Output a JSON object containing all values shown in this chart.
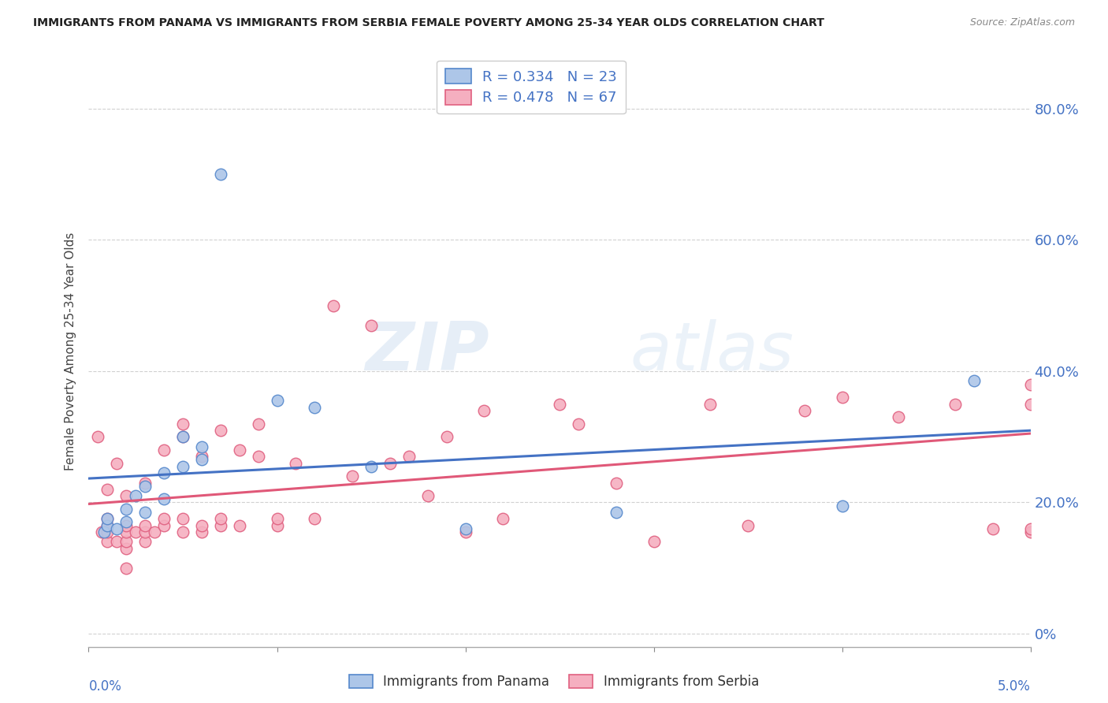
{
  "title": "IMMIGRANTS FROM PANAMA VS IMMIGRANTS FROM SERBIA FEMALE POVERTY AMONG 25-34 YEAR OLDS CORRELATION CHART",
  "source": "Source: ZipAtlas.com",
  "ylabel": "Female Poverty Among 25-34 Year Olds",
  "right_ytick_labels": [
    "0%",
    "20.0%",
    "40.0%",
    "60.0%",
    "80.0%"
  ],
  "right_ytick_values": [
    0.0,
    0.2,
    0.4,
    0.6,
    0.8
  ],
  "legend_panama": "R = 0.334   N = 23",
  "legend_serbia": "R = 0.478   N = 67",
  "legend_bottom_panama": "Immigrants from Panama",
  "legend_bottom_serbia": "Immigrants from Serbia",
  "watermark_zip": "ZIP",
  "watermark_atlas": "atlas",
  "panama_color": "#adc6e8",
  "serbia_color": "#f5afc0",
  "panama_edge_color": "#5588cc",
  "serbia_edge_color": "#e06080",
  "panama_line_color": "#4472c4",
  "serbia_line_color": "#e05878",
  "xlim": [
    0.0,
    0.05
  ],
  "ylim": [
    -0.02,
    0.88
  ],
  "panama_x": [
    0.0008,
    0.001,
    0.001,
    0.0015,
    0.002,
    0.002,
    0.0025,
    0.003,
    0.003,
    0.004,
    0.004,
    0.005,
    0.005,
    0.006,
    0.006,
    0.007,
    0.01,
    0.012,
    0.015,
    0.02,
    0.028,
    0.04,
    0.047
  ],
  "panama_y": [
    0.155,
    0.165,
    0.175,
    0.16,
    0.17,
    0.19,
    0.21,
    0.185,
    0.225,
    0.205,
    0.245,
    0.255,
    0.3,
    0.265,
    0.285,
    0.7,
    0.355,
    0.345,
    0.255,
    0.16,
    0.185,
    0.195,
    0.385
  ],
  "serbia_x": [
    0.0005,
    0.0007,
    0.001,
    0.001,
    0.001,
    0.001,
    0.001,
    0.0015,
    0.0015,
    0.002,
    0.002,
    0.002,
    0.002,
    0.002,
    0.002,
    0.0025,
    0.003,
    0.003,
    0.003,
    0.003,
    0.0035,
    0.004,
    0.004,
    0.004,
    0.005,
    0.005,
    0.005,
    0.005,
    0.006,
    0.006,
    0.006,
    0.007,
    0.007,
    0.007,
    0.008,
    0.008,
    0.009,
    0.009,
    0.01,
    0.01,
    0.011,
    0.012,
    0.013,
    0.014,
    0.015,
    0.016,
    0.017,
    0.018,
    0.019,
    0.02,
    0.021,
    0.022,
    0.025,
    0.026,
    0.028,
    0.03,
    0.033,
    0.035,
    0.038,
    0.04,
    0.043,
    0.046,
    0.048,
    0.05,
    0.05,
    0.05,
    0.05
  ],
  "serbia_y": [
    0.3,
    0.155,
    0.14,
    0.155,
    0.165,
    0.175,
    0.22,
    0.14,
    0.26,
    0.1,
    0.13,
    0.14,
    0.155,
    0.165,
    0.21,
    0.155,
    0.14,
    0.155,
    0.165,
    0.23,
    0.155,
    0.165,
    0.175,
    0.28,
    0.155,
    0.175,
    0.3,
    0.32,
    0.155,
    0.165,
    0.27,
    0.165,
    0.175,
    0.31,
    0.165,
    0.28,
    0.27,
    0.32,
    0.165,
    0.175,
    0.26,
    0.175,
    0.5,
    0.24,
    0.47,
    0.26,
    0.27,
    0.21,
    0.3,
    0.155,
    0.34,
    0.175,
    0.35,
    0.32,
    0.23,
    0.14,
    0.35,
    0.165,
    0.34,
    0.36,
    0.33,
    0.35,
    0.16,
    0.35,
    0.38,
    0.155,
    0.16
  ]
}
